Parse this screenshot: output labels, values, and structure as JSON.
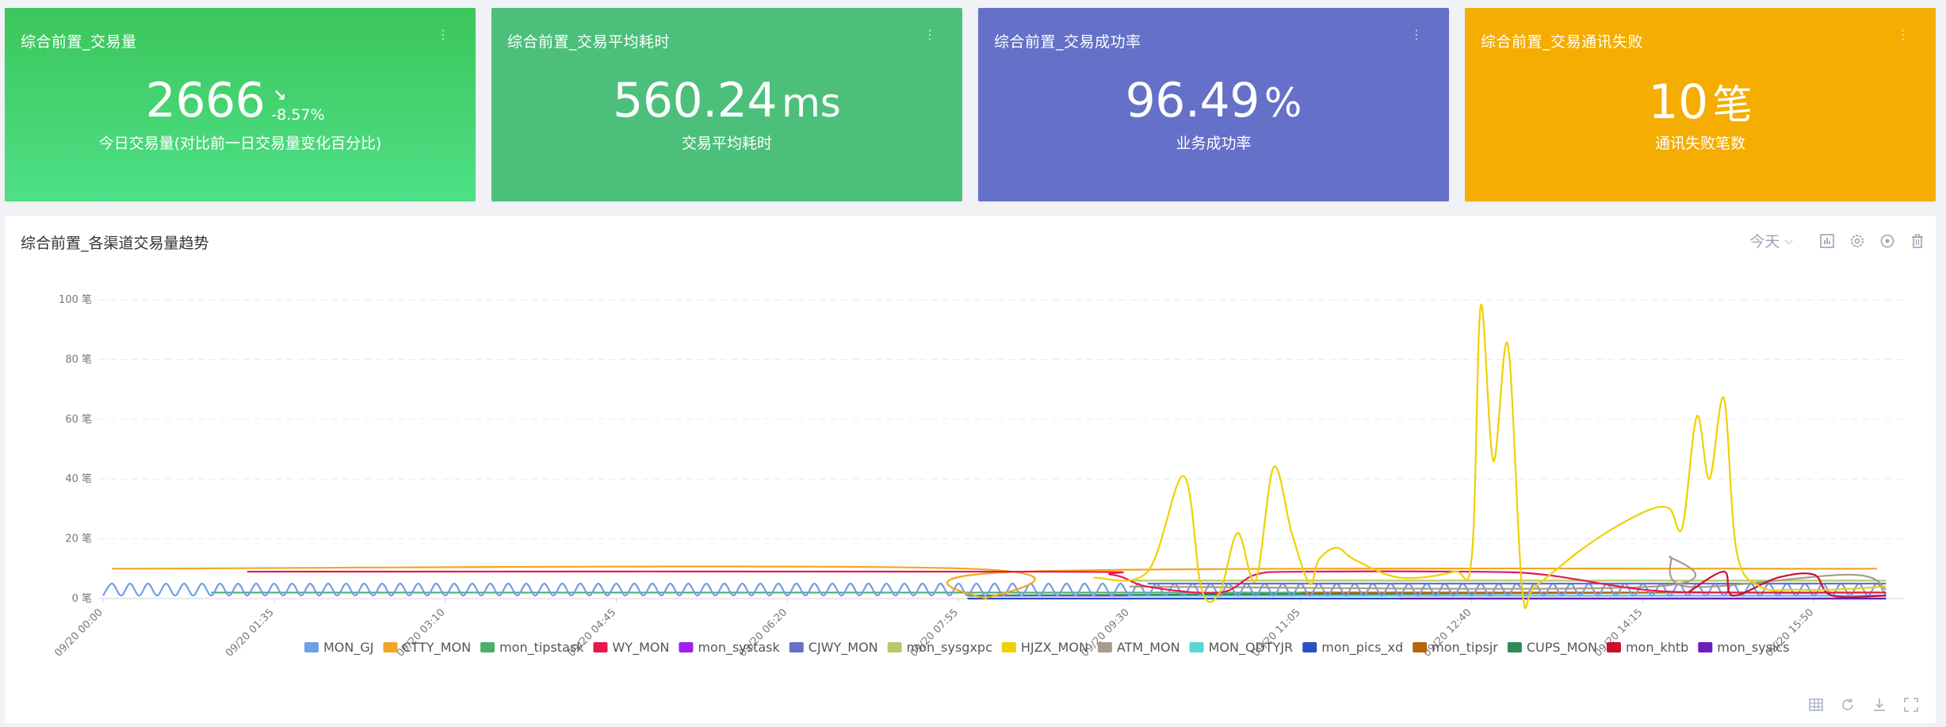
{
  "cards": [
    {
      "title": "综合前置_交易量",
      "value": "2666",
      "unit": "",
      "trend_arrow": "↘",
      "trend_pct": "-8.57%",
      "subtitle": "今日交易量(对比前一日交易量变化百分比)"
    },
    {
      "title": "综合前置_交易平均耗时",
      "value": "560.24",
      "unit": "ms",
      "subtitle": "交易平均耗时"
    },
    {
      "title": "综合前置_交易成功率",
      "value": "96.49",
      "unit": "%",
      "subtitle": "业务成功率"
    },
    {
      "title": "综合前置_交易通讯失败",
      "value": "10",
      "unit": "笔",
      "subtitle": "通讯失败笔数"
    }
  ],
  "card_menu_icon": "more-vertical-icon",
  "panel": {
    "title": "综合前置_各渠道交易量趋势",
    "range_label": "今天",
    "toolbar_icons": [
      "bar-chart-icon",
      "gear-icon",
      "target-icon",
      "trash-icon"
    ],
    "bottom_icons": [
      "table-icon",
      "refresh-icon",
      "download-icon",
      "fullscreen-icon"
    ]
  },
  "colors": {
    "card1": "#3cc65a",
    "card2": "#4cc07a",
    "card3": "#6570c8",
    "card4": "#f4ad00"
  },
  "chart_data": {
    "type": "line",
    "ylim": [
      0,
      100
    ],
    "yticks": [
      0,
      20,
      40,
      60,
      80,
      100
    ],
    "ytick_labels": [
      "0 笔",
      "20 笔",
      "40 笔",
      "60 笔",
      "80 笔",
      "100 笔"
    ],
    "xlim": [
      "00:00",
      "16:40"
    ],
    "xtick_labels": [
      "09/20 00:00",
      "09/20 01:35",
      "09/20 03:10",
      "09/20 04:45",
      "09/20 06:20",
      "09/20 07:55",
      "09/20 09:30",
      "09/20 11:05",
      "09/20 12:40",
      "09/20 14:15",
      "09/20 15:50"
    ],
    "grid": true,
    "legend": "bottom",
    "series": [
      {
        "name": "MON_GJ",
        "color": "#6f9eea",
        "pattern": "wave",
        "range": [
          "00:00",
          "16:30"
        ],
        "low": 1,
        "high": 5,
        "period_min": 10
      },
      {
        "name": "CTTY_MON",
        "color": "#f2a622",
        "points": [
          [
            "00:05",
            10
          ],
          [
            "08:00",
            10
          ],
          [
            "08:10",
            0
          ],
          [
            "08:30",
            9
          ],
          [
            "16:25",
            10
          ]
        ]
      },
      {
        "name": "mon_tipstask",
        "color": "#4caf6e",
        "points": [
          [
            "01:00",
            2
          ],
          [
            "16:30",
            2
          ]
        ]
      },
      {
        "name": "WY_MON",
        "color": "#e8184f",
        "points": [
          [
            "01:20",
            9
          ],
          [
            "08:40",
            9
          ],
          [
            "09:20",
            8
          ],
          [
            "09:40",
            4
          ],
          [
            "10:20",
            2
          ],
          [
            "10:40",
            8
          ],
          [
            "11:05",
            9
          ],
          [
            "12:40",
            9
          ],
          [
            "13:20",
            8
          ],
          [
            "14:15",
            3
          ],
          [
            "15:00",
            2
          ],
          [
            "16:30",
            2
          ]
        ]
      },
      {
        "name": "mon_systask",
        "color": "#a020f0",
        "points": [
          [
            "08:00",
            1
          ],
          [
            "16:30",
            1
          ]
        ]
      },
      {
        "name": "CJWY_MON",
        "color": "#6a6fc8",
        "points": [
          [
            "09:40",
            5
          ],
          [
            "16:30",
            5
          ]
        ]
      },
      {
        "name": "mon_sysgxpc",
        "color": "#b5c96a",
        "points": [
          [
            "09:30",
            6
          ],
          [
            "16:30",
            6
          ]
        ]
      },
      {
        "name": "HJZX_MON",
        "color": "#f0d000",
        "points": [
          [
            "09:10",
            7
          ],
          [
            "09:40",
            9
          ],
          [
            "10:00",
            41
          ],
          [
            "10:10",
            3
          ],
          [
            "10:20",
            2
          ],
          [
            "10:30",
            22
          ],
          [
            "10:40",
            6
          ],
          [
            "10:50",
            44
          ],
          [
            "11:00",
            22
          ],
          [
            "11:10",
            5
          ],
          [
            "11:15",
            13
          ],
          [
            "11:25",
            17
          ],
          [
            "11:35",
            13
          ],
          [
            "12:00",
            7
          ],
          [
            "12:30",
            9
          ],
          [
            "12:40",
            14
          ],
          [
            "12:45",
            98
          ],
          [
            "12:52",
            46
          ],
          [
            "13:00",
            85
          ],
          [
            "13:08",
            3
          ],
          [
            "13:15",
            4
          ],
          [
            "13:40",
            16
          ],
          [
            "14:00",
            24
          ],
          [
            "14:20",
            30
          ],
          [
            "14:30",
            30
          ],
          [
            "14:37",
            24
          ],
          [
            "14:45",
            61
          ],
          [
            "14:52",
            40
          ],
          [
            "15:00",
            67
          ],
          [
            "15:07",
            16
          ],
          [
            "15:20",
            4
          ],
          [
            "15:40",
            3
          ],
          [
            "16:00",
            3
          ],
          [
            "16:30",
            4
          ]
        ]
      },
      {
        "name": "ATM_MON",
        "color": "#a99a8c",
        "points": [
          [
            "09:30",
            4
          ],
          [
            "14:20",
            4
          ],
          [
            "14:30",
            14
          ],
          [
            "14:40",
            4
          ],
          [
            "16:10",
            8
          ],
          [
            "16:30",
            3
          ]
        ]
      },
      {
        "name": "MON_QDTYJR",
        "color": "#5ad6d6",
        "points": [
          [
            "09:30",
            1
          ],
          [
            "16:30",
            1
          ]
        ]
      },
      {
        "name": "mon_pics_xd",
        "color": "#2a4fc0",
        "points": [
          [
            "08:00",
            0
          ],
          [
            "16:30",
            0
          ]
        ]
      },
      {
        "name": "mon_tipsjr",
        "color": "#b8640a",
        "points": [
          [
            "11:05",
            2
          ],
          [
            "16:30",
            2
          ]
        ]
      },
      {
        "name": "CUPS_MON",
        "color": "#2e8b57",
        "points": [
          [
            "08:00",
            1
          ],
          [
            "14:30",
            2
          ],
          [
            "16:30",
            2
          ]
        ]
      },
      {
        "name": "mon_khtb",
        "color": "#c8102e",
        "points": [
          [
            "14:40",
            2
          ],
          [
            "15:00",
            9
          ],
          [
            "15:05",
            1
          ],
          [
            "15:30",
            7
          ],
          [
            "15:50",
            8
          ],
          [
            "16:00",
            1
          ],
          [
            "16:30",
            1
          ]
        ]
      },
      {
        "name": "mon_sysics",
        "color": "#6c1fb8",
        "points": [
          [
            "12:00",
            0
          ],
          [
            "16:30",
            0
          ]
        ]
      }
    ]
  }
}
